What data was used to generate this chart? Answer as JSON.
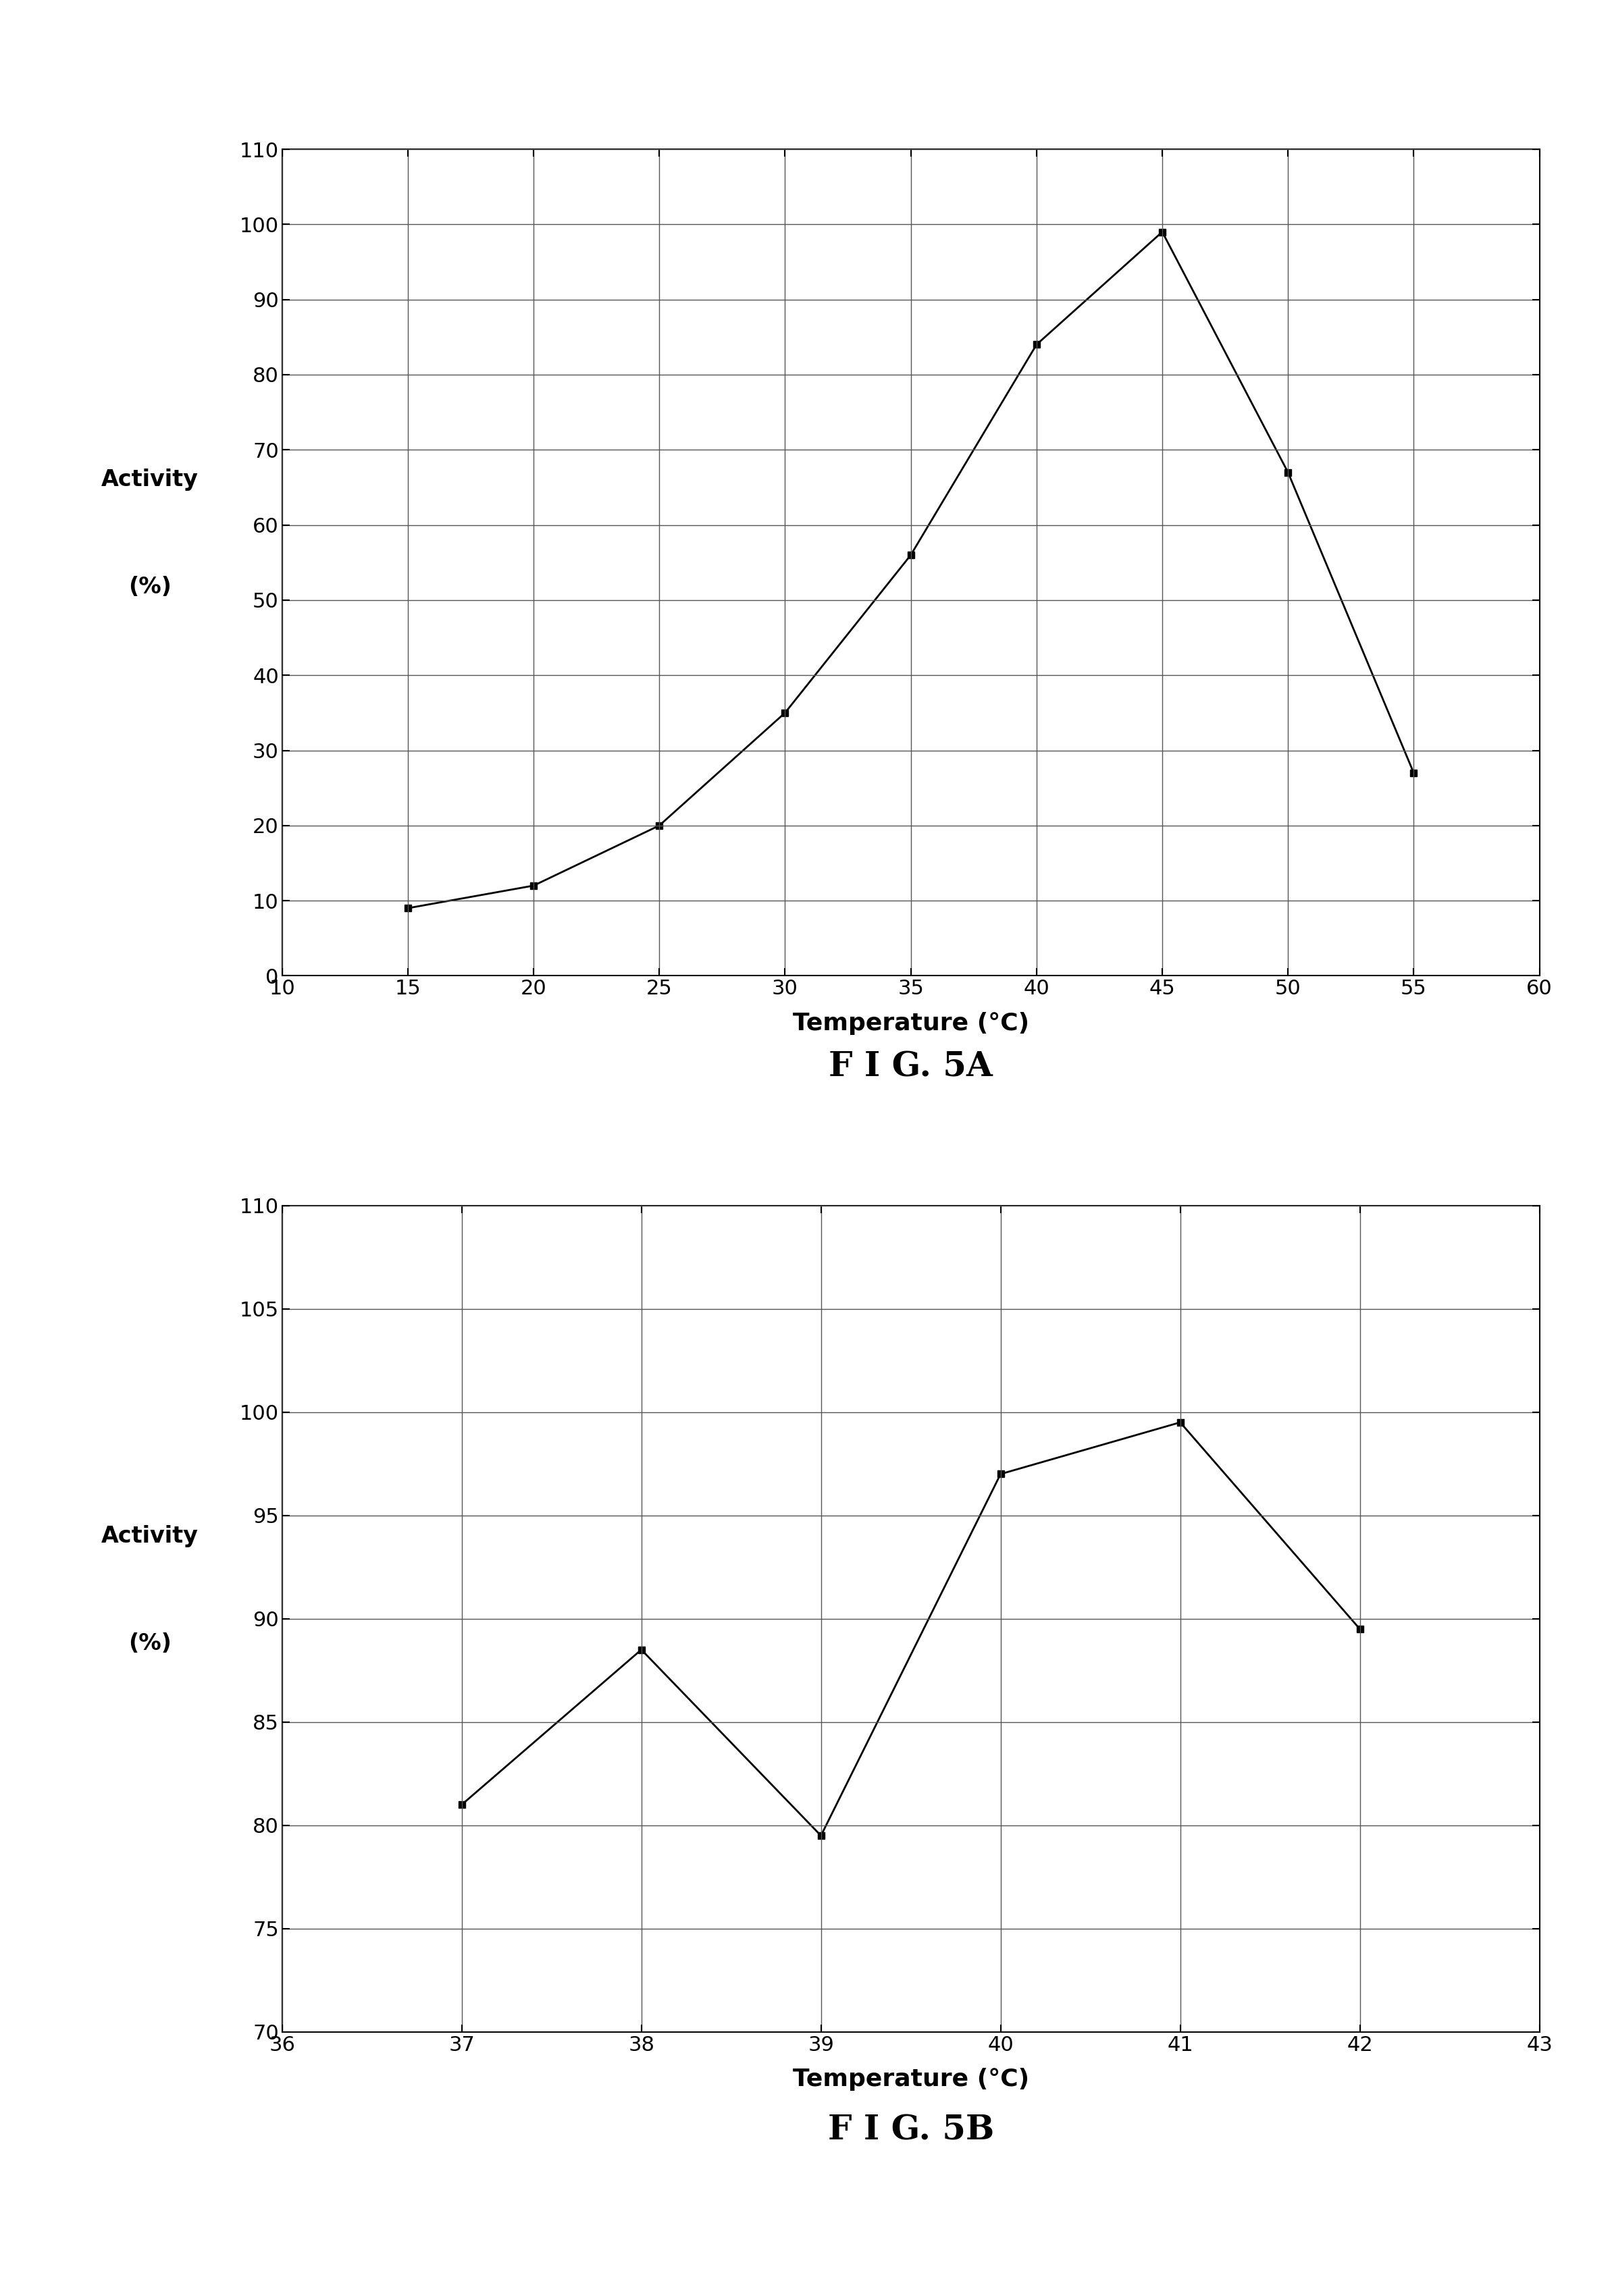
{
  "fig5a": {
    "x": [
      15,
      20,
      25,
      30,
      35,
      40,
      45,
      50,
      55
    ],
    "y": [
      9,
      12,
      20,
      35,
      56,
      84,
      99,
      67,
      27
    ],
    "xlim": [
      10,
      60
    ],
    "ylim": [
      0,
      110
    ],
    "xticks": [
      10,
      15,
      20,
      25,
      30,
      35,
      40,
      45,
      50,
      55,
      60
    ],
    "yticks": [
      0,
      10,
      20,
      30,
      40,
      50,
      60,
      70,
      80,
      90,
      100,
      110
    ],
    "xlabel": "Temperature (°C)",
    "ylabel_line1": "Activity",
    "ylabel_line2": "(%)",
    "caption": "F I G. 5A"
  },
  "fig5b": {
    "x": [
      37,
      38,
      39,
      40,
      41,
      42
    ],
    "y": [
      81,
      88.5,
      79.5,
      97,
      99.5,
      89.5
    ],
    "xlim": [
      36,
      43
    ],
    "ylim": [
      70,
      110
    ],
    "xticks": [
      36,
      37,
      38,
      39,
      40,
      41,
      42,
      43
    ],
    "yticks": [
      70,
      75,
      80,
      85,
      90,
      95,
      100,
      105,
      110
    ],
    "xlabel": "Temperature (°C)",
    "ylabel_line1": "Activity",
    "ylabel_line2": "(%)",
    "caption": "F I G. 5B"
  },
  "line_color": "#000000",
  "marker": "s",
  "marker_size": 7,
  "line_width": 2.0,
  "grid_color": "#555555",
  "background_color": "#ffffff",
  "font_size_ticks": 22,
  "font_size_xlabel": 26,
  "font_size_ylabel": 24,
  "font_size_caption": 36
}
